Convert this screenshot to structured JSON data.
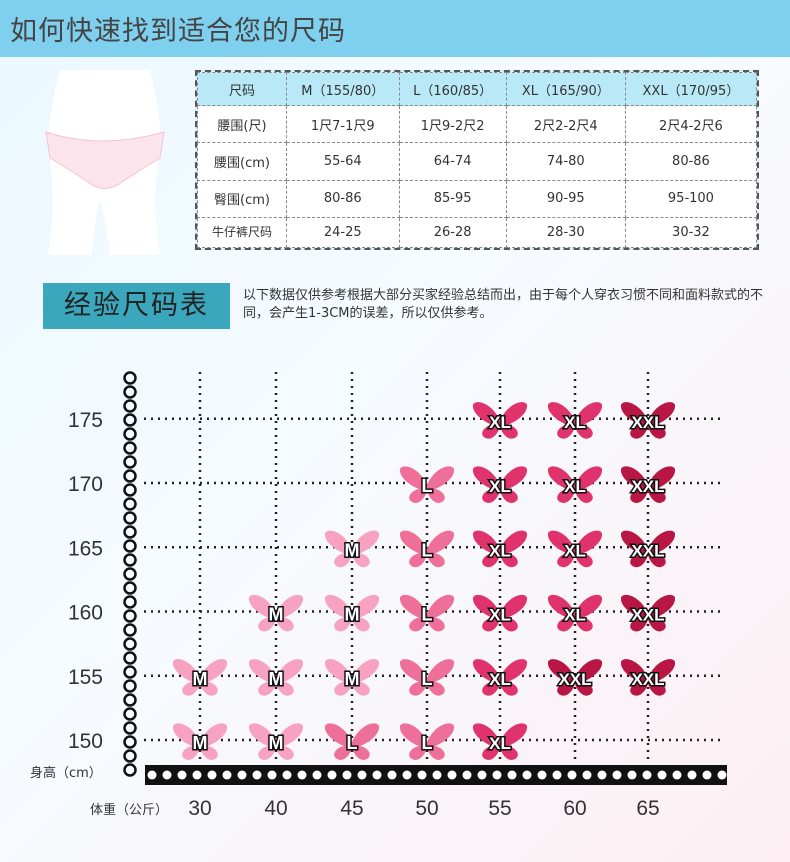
{
  "page_title": "如何快速找到适合您的尺码",
  "size_table": {
    "columns": [
      "尺码",
      "M（155/80）",
      "L（160/85）",
      "XL（165/90）",
      "XXL（170/95）"
    ],
    "rows": [
      {
        "label": "腰围(尺)",
        "values": [
          "1尺7-1尺9",
          "1尺9-2尺2",
          "2尺2-2尺4",
          "2尺4-2尺6"
        ]
      },
      {
        "label": "腰围(cm)",
        "values": [
          "55-64",
          "64-74",
          "74-80",
          "80-86"
        ]
      },
      {
        "label": "臀围(cm)",
        "values": [
          "80-86",
          "85-95",
          "90-95",
          "95-100"
        ]
      },
      {
        "label": "牛仔裤尺码",
        "values": [
          "24-25",
          "26-28",
          "28-30",
          "30-32"
        ]
      }
    ]
  },
  "section": {
    "title": "经验尺码表",
    "note": "以下数据仅供参考根据大部分买家经验总结而出，由于每个人穿衣习惯不同和面料款式的不同，会产生1-3CM的误差，所以仅供参考。"
  },
  "chart_data": {
    "type": "scatter",
    "xlabel": "体重（公斤）",
    "ylabel": "身高（cm）",
    "x_ticks": [
      30,
      40,
      45,
      50,
      55,
      60,
      65
    ],
    "y_ticks": [
      150,
      155,
      160,
      165,
      170,
      175
    ],
    "grid": true,
    "size_colors": {
      "M": "#f7a2c0",
      "L": "#ee6f98",
      "XL": "#e0326b",
      "XXL": "#b81745"
    },
    "points": [
      {
        "weight": 55,
        "height": 175,
        "size": "XL"
      },
      {
        "weight": 60,
        "height": 175,
        "size": "XL"
      },
      {
        "weight": 65,
        "height": 175,
        "size": "XXL"
      },
      {
        "weight": 50,
        "height": 170,
        "size": "L"
      },
      {
        "weight": 55,
        "height": 170,
        "size": "XL"
      },
      {
        "weight": 60,
        "height": 170,
        "size": "XL"
      },
      {
        "weight": 65,
        "height": 170,
        "size": "XXL"
      },
      {
        "weight": 45,
        "height": 165,
        "size": "M"
      },
      {
        "weight": 50,
        "height": 165,
        "size": "L"
      },
      {
        "weight": 55,
        "height": 165,
        "size": "XL"
      },
      {
        "weight": 60,
        "height": 165,
        "size": "XL"
      },
      {
        "weight": 65,
        "height": 165,
        "size": "XXL"
      },
      {
        "weight": 40,
        "height": 160,
        "size": "M"
      },
      {
        "weight": 45,
        "height": 160,
        "size": "M"
      },
      {
        "weight": 50,
        "height": 160,
        "size": "L"
      },
      {
        "weight": 55,
        "height": 160,
        "size": "XL"
      },
      {
        "weight": 60,
        "height": 160,
        "size": "XL"
      },
      {
        "weight": 65,
        "height": 160,
        "size": "XXL"
      },
      {
        "weight": 30,
        "height": 155,
        "size": "M"
      },
      {
        "weight": 40,
        "height": 155,
        "size": "M"
      },
      {
        "weight": 45,
        "height": 155,
        "size": "M"
      },
      {
        "weight": 50,
        "height": 155,
        "size": "L"
      },
      {
        "weight": 55,
        "height": 155,
        "size": "XL"
      },
      {
        "weight": 60,
        "height": 155,
        "size": "XXL"
      },
      {
        "weight": 65,
        "height": 155,
        "size": "XXL"
      },
      {
        "weight": 30,
        "height": 150,
        "size": "M"
      },
      {
        "weight": 40,
        "height": 150,
        "size": "M"
      },
      {
        "weight": 45,
        "height": 150,
        "size": "L"
      },
      {
        "weight": 50,
        "height": 150,
        "size": "L"
      },
      {
        "weight": 55,
        "height": 150,
        "size": "XL"
      }
    ]
  }
}
